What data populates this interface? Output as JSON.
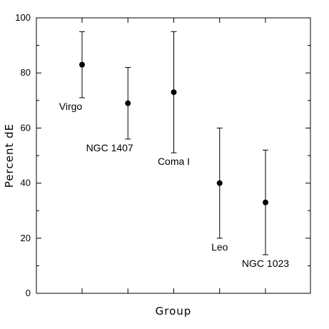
{
  "chart_data": {
    "type": "scatter",
    "title": "",
    "xlabel": "Group",
    "ylabel": "Percent dE",
    "ylim": [
      0,
      100
    ],
    "yticks": [
      0,
      20,
      40,
      60,
      80,
      100
    ],
    "grid": false,
    "legend": "none",
    "x": [
      1,
      2,
      3,
      4,
      5
    ],
    "xlim": [
      0,
      6
    ],
    "points": [
      {
        "label": "Virgo",
        "x": 1,
        "y": 83,
        "y_low": 71,
        "y_high": 95,
        "label_pos": "below-left"
      },
      {
        "label": "NGC 1407",
        "x": 2,
        "y": 69,
        "y_low": 56,
        "y_high": 82,
        "label_pos": "below-left"
      },
      {
        "label": "Coma I",
        "x": 3,
        "y": 73,
        "y_low": 51,
        "y_high": 95,
        "label_pos": "below"
      },
      {
        "label": "Leo",
        "x": 4,
        "y": 40,
        "y_low": 20,
        "y_high": 60,
        "label_pos": "below"
      },
      {
        "label": "NGC 1023",
        "x": 5,
        "y": 33,
        "y_low": 14,
        "y_high": 52,
        "label_pos": "below"
      }
    ]
  }
}
